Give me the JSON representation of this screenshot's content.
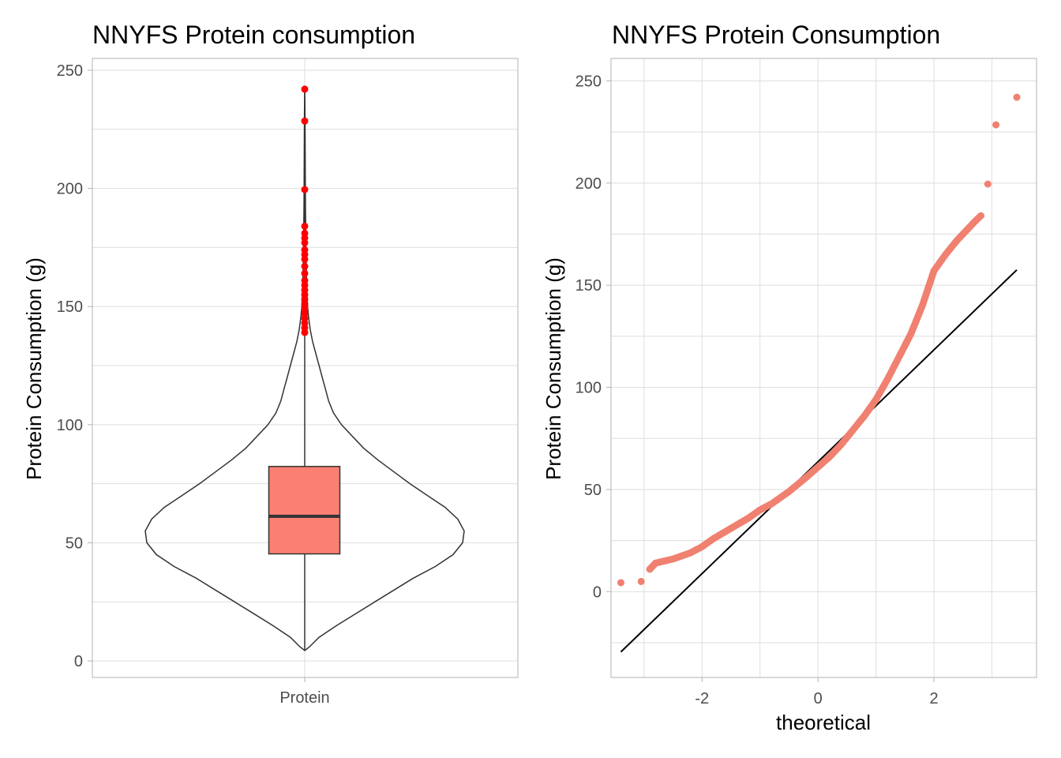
{
  "colors": {
    "box_fill": "#fa8072",
    "outlier": "#ff0000",
    "qq_point": "#f08070",
    "line": "#000000",
    "grid": "#dedede",
    "panel_border": "#b3b3b3"
  },
  "chart_data": [
    {
      "type": "violin+box",
      "title": "NNYFS Protein consumption",
      "xlabel": "",
      "ylabel": "Protein Consumption (g)",
      "categories": [
        "Protein"
      ],
      "ylim": [
        -7,
        255
      ],
      "yticks": [
        0,
        50,
        100,
        150,
        200,
        250
      ],
      "grid": true,
      "box": {
        "min": 4.4,
        "q1": 45.3,
        "median": 61.2,
        "q3": 82.3,
        "whisker_high": 138
      },
      "outliers": [
        139,
        141,
        143,
        145,
        147,
        149,
        151,
        153,
        155,
        157,
        159,
        161,
        164,
        167,
        170,
        172,
        174,
        177,
        179,
        181,
        184,
        199.5,
        228.5,
        242
      ],
      "violin_profile": [
        [
          4.4,
          0.0
        ],
        [
          6,
          0.03
        ],
        [
          10,
          0.09
        ],
        [
          15,
          0.2
        ],
        [
          20,
          0.32
        ],
        [
          25,
          0.44
        ],
        [
          30,
          0.56
        ],
        [
          35,
          0.68
        ],
        [
          40,
          0.82
        ],
        [
          45,
          0.93
        ],
        [
          50,
          0.99
        ],
        [
          55,
          1.0
        ],
        [
          60,
          0.96
        ],
        [
          65,
          0.88
        ],
        [
          70,
          0.77
        ],
        [
          75,
          0.66
        ],
        [
          80,
          0.56
        ],
        [
          85,
          0.46
        ],
        [
          90,
          0.37
        ],
        [
          95,
          0.3
        ],
        [
          100,
          0.23
        ],
        [
          105,
          0.18
        ],
        [
          110,
          0.15
        ],
        [
          115,
          0.13
        ],
        [
          120,
          0.11
        ],
        [
          125,
          0.09
        ],
        [
          130,
          0.07
        ],
        [
          135,
          0.05
        ],
        [
          140,
          0.035
        ],
        [
          145,
          0.025
        ],
        [
          150,
          0.018
        ],
        [
          160,
          0.012
        ],
        [
          170,
          0.009
        ],
        [
          180,
          0.007
        ],
        [
          190,
          0.005
        ],
        [
          200,
          0.004
        ],
        [
          215,
          0.003
        ],
        [
          230,
          0.002
        ],
        [
          242,
          0.0
        ]
      ]
    },
    {
      "type": "scatter",
      "title": "NNYFS Protein Consumption",
      "xlabel": "theoretical",
      "ylabel": "Protein Consumption (g)",
      "xlim": [
        -3.57,
        3.77
      ],
      "ylim": [
        -42,
        261
      ],
      "xticks": [
        -2,
        0,
        2
      ],
      "yticks": [
        0,
        50,
        100,
        150,
        200,
        250
      ],
      "grid": true,
      "qq_curve": [
        [
          -3.4,
          4.4
        ],
        [
          -3.05,
          5
        ],
        [
          -2.9,
          11
        ],
        [
          -2.8,
          14
        ],
        [
          -2.5,
          16
        ],
        [
          -2.2,
          19
        ],
        [
          -2.0,
          22
        ],
        [
          -1.8,
          26
        ],
        [
          -1.5,
          31
        ],
        [
          -1.2,
          36
        ],
        [
          -1.0,
          40
        ],
        [
          -0.8,
          43
        ],
        [
          -0.5,
          49
        ],
        [
          -0.2,
          56
        ],
        [
          0.0,
          61
        ],
        [
          0.2,
          66
        ],
        [
          0.4,
          72
        ],
        [
          0.6,
          79
        ],
        [
          0.8,
          86
        ],
        [
          1.0,
          94
        ],
        [
          1.2,
          104
        ],
        [
          1.4,
          115
        ],
        [
          1.6,
          126
        ],
        [
          1.8,
          140
        ],
        [
          2.0,
          157
        ],
        [
          2.2,
          165
        ],
        [
          2.4,
          172
        ],
        [
          2.6,
          178
        ],
        [
          2.7,
          181
        ],
        [
          2.81,
          184
        ]
      ],
      "qq_tail": [
        [
          2.93,
          199.5
        ],
        [
          3.07,
          228.5
        ],
        [
          3.43,
          242
        ]
      ],
      "ref_line": {
        "x": [
          -3.4,
          3.43
        ],
        "y": [
          -29.5,
          157.5
        ]
      }
    }
  ]
}
